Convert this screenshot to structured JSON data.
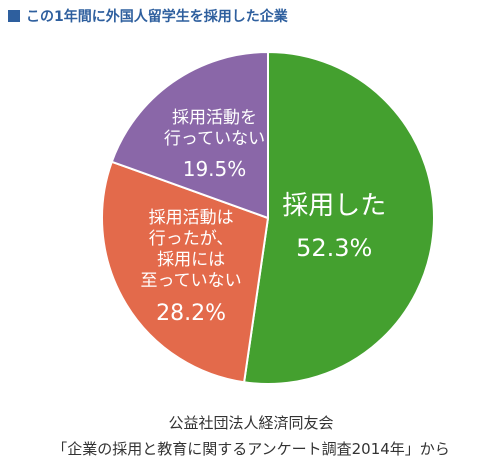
{
  "header": {
    "title": "この1年間に外国人留学生を採用した企業",
    "accent_color": "#2e5f9e"
  },
  "chart_data": {
    "type": "pie",
    "title": "この1年間に外国人留学生を採用した企業",
    "slices": [
      {
        "lines": [
          "採用した"
        ],
        "value": 52.3,
        "value_label": "52.3%",
        "color": "#44a02f"
      },
      {
        "lines": [
          "採用活動は",
          "行ったが、",
          "採用には",
          "至っていない"
        ],
        "value": 28.2,
        "value_label": "28.2%",
        "color": "#e36a4b"
      },
      {
        "lines": [
          "採用活動を",
          "行っていない"
        ],
        "value": 19.5,
        "value_label": "19.5%",
        "color": "#8a67a8"
      }
    ],
    "start_angle_deg": 0,
    "direction": "clockwise"
  },
  "footer": {
    "line1": "公益社団法人経済同友会",
    "line2": "「企業の採用と教育に関するアンケート調査2014年」から"
  }
}
